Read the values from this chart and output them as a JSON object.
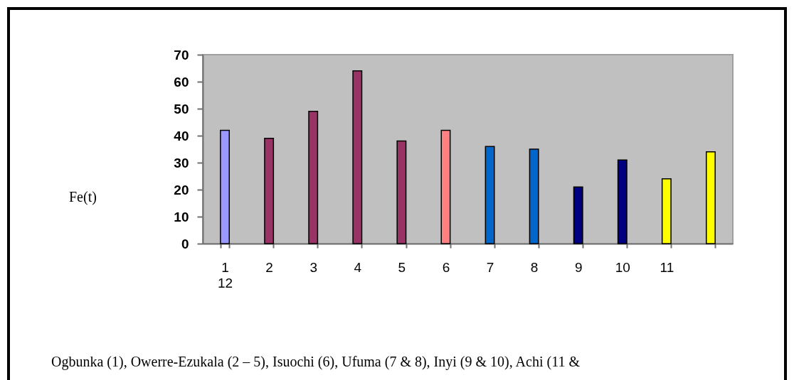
{
  "chart_data": {
    "type": "bar",
    "categories": [
      "1\n12",
      "2",
      "3",
      "4",
      "5",
      "6",
      "7",
      "8",
      "9",
      "10",
      "11",
      null
    ],
    "values": [
      42,
      39,
      49,
      64,
      38,
      42,
      36,
      35,
      21,
      31,
      24,
      34
    ],
    "colors": [
      "#9999ff",
      "#993366",
      "#993366",
      "#993366",
      "#993366",
      "#ff8080",
      "#0066cc",
      "#0066cc",
      "#000080",
      "#000080",
      "#ffff00",
      "#ffff00"
    ],
    "ylim": [
      0,
      70
    ],
    "yticks": [
      0,
      10,
      20,
      30,
      40,
      50,
      60,
      70
    ],
    "grid": false,
    "annotations": [
      "Fe(t)",
      "Ogbunka (1), Owerre-Ezukala (2 – 5), Isuochi (6), Ufuma (7 & 8), Inyi (9 & 10), Achi (11 &"
    ]
  }
}
